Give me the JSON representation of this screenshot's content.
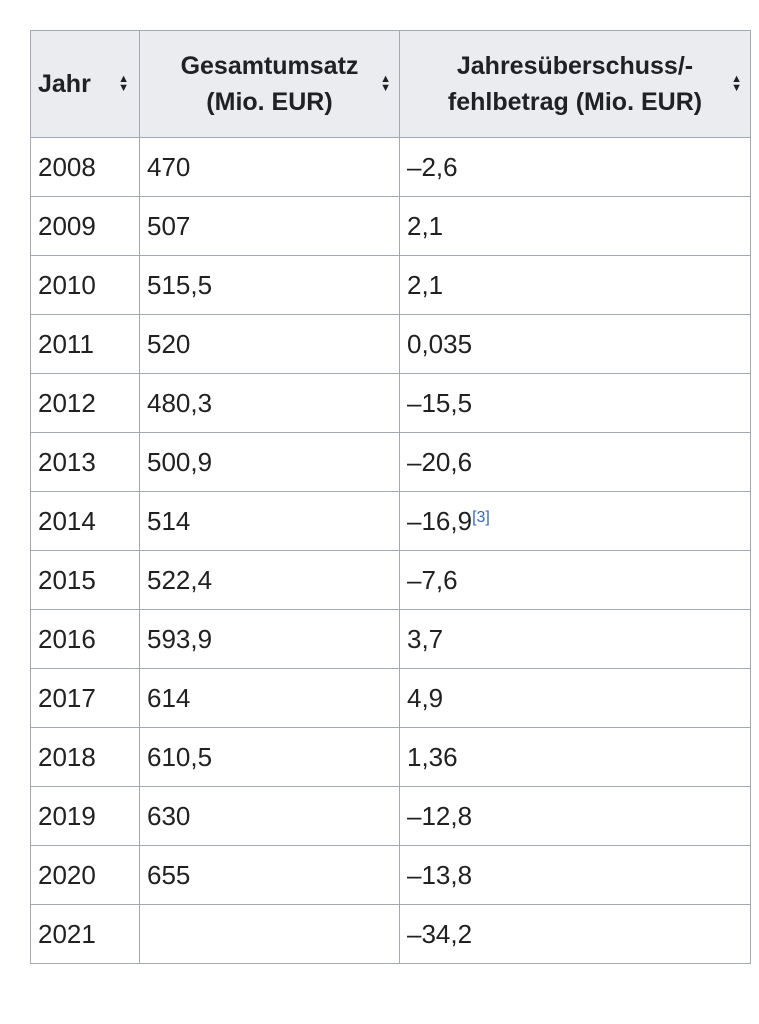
{
  "columns": [
    {
      "label_lines": [
        "Jahr"
      ]
    },
    {
      "label_lines": [
        "Gesamtumsatz",
        "(Mio. EUR)"
      ]
    },
    {
      "label_lines": [
        "Jahresüberschuss/-",
        "fehlbetrag (Mio. EUR)"
      ]
    }
  ],
  "sort_icon": "sort-up-down-icon",
  "rows": [
    {
      "year": "2008",
      "revenue": "470",
      "result": "–2,6",
      "ref": ""
    },
    {
      "year": "2009",
      "revenue": "507",
      "result": "2,1",
      "ref": ""
    },
    {
      "year": "2010",
      "revenue": "515,5",
      "result": "2,1",
      "ref": ""
    },
    {
      "year": "2011",
      "revenue": "520",
      "result": "0,035",
      "ref": ""
    },
    {
      "year": "2012",
      "revenue": "480,3",
      "result": "–15,5",
      "ref": ""
    },
    {
      "year": "2013",
      "revenue": "500,9",
      "result": "–20,6",
      "ref": ""
    },
    {
      "year": "2014",
      "revenue": "514",
      "result": "–16,9",
      "ref": "[3]"
    },
    {
      "year": "2015",
      "revenue": "522,4",
      "result": "–7,6",
      "ref": ""
    },
    {
      "year": "2016",
      "revenue": "593,9",
      "result": "3,7",
      "ref": ""
    },
    {
      "year": "2017",
      "revenue": "614",
      "result": "4,9",
      "ref": ""
    },
    {
      "year": "2018",
      "revenue": "610,5",
      "result": "1,36",
      "ref": ""
    },
    {
      "year": "2019",
      "revenue": "630",
      "result": "–12,8",
      "ref": ""
    },
    {
      "year": "2020",
      "revenue": "655",
      "result": "–13,8",
      "ref": ""
    },
    {
      "year": "2021",
      "revenue": "",
      "result": "–34,2",
      "ref": ""
    }
  ],
  "colors": {
    "header_bg": "#eaecf0",
    "border": "#a2a9b1",
    "link": "#3366cc"
  }
}
